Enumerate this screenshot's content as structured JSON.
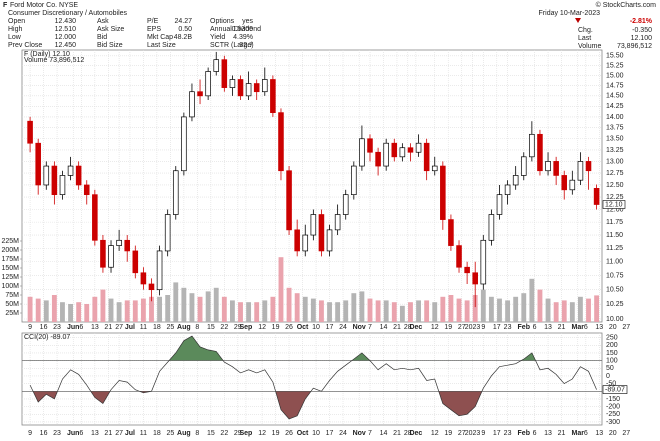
{
  "quote": {
    "symbol": "F",
    "name": "Ford Motor Co. NYSE",
    "credit": "© StockCharts.com",
    "sector": "Consumer Discretionary / Automobiles",
    "columns": [
      [
        {
          "label": "Open",
          "value": "12.430"
        },
        {
          "label": "High",
          "value": "12.510"
        },
        {
          "label": "Low",
          "value": "12.000"
        },
        {
          "label": "Prev Close",
          "value": "12.450"
        }
      ],
      [
        {
          "label": "Ask"
        },
        {
          "label": "Ask Size"
        },
        {
          "label": "Bid"
        },
        {
          "label": "Bid Size"
        }
      ],
      [
        {
          "label": "P/E",
          "value": "24.27"
        },
        {
          "label": "EPS",
          "value": "0.50"
        },
        {
          "label": "Mkt Cap",
          "value": "48.2B"
        },
        {
          "label": "Last Size"
        }
      ],
      [
        {
          "label": "Options",
          "value": "yes"
        },
        {
          "label": "Annual Dividend",
          "value": "0.5300"
        },
        {
          "label": "Yield",
          "value": "4.39%"
        },
        {
          "label": "SCTR (Large)",
          "value": "32.7"
        }
      ]
    ],
    "date": "Friday 10-Mar-2023",
    "change_pct": "-2.81%",
    "right": [
      {
        "label": "Chg.",
        "value": "-0.350"
      },
      {
        "label": "Last",
        "value": "12.100"
      },
      {
        "label": "Volume",
        "value": "73,896,512"
      }
    ]
  },
  "chart_data": {
    "type": "candlestick",
    "legend": "F (Daily) 12.10",
    "volume_legend": "Volume 73,896,512",
    "last_label": "12.10",
    "log": true,
    "grid": true,
    "up_color": "#000000",
    "down_color": "#cc0000",
    "xlim": [
      -3,
      212
    ],
    "xticks": [
      {
        "value": 0,
        "label": "9"
      },
      {
        "value": 5,
        "label": "16"
      },
      {
        "value": 10,
        "label": "23"
      },
      {
        "value": 16,
        "label": "Jun"
      },
      {
        "value": 19,
        "label": "6"
      },
      {
        "value": 24,
        "label": "13"
      },
      {
        "value": 29,
        "label": "21"
      },
      {
        "value": 33,
        "label": "27"
      },
      {
        "value": 37,
        "label": "Jul"
      },
      {
        "value": 42,
        "label": "11"
      },
      {
        "value": 47,
        "label": "18"
      },
      {
        "value": 52,
        "label": "25"
      },
      {
        "value": 57,
        "label": "Aug"
      },
      {
        "value": 62,
        "label": "8"
      },
      {
        "value": 67,
        "label": "15"
      },
      {
        "value": 72,
        "label": "22"
      },
      {
        "value": 77,
        "label": "29"
      },
      {
        "value": 80,
        "label": "Sep"
      },
      {
        "value": 86,
        "label": "12"
      },
      {
        "value": 91,
        "label": "19"
      },
      {
        "value": 96,
        "label": "26"
      },
      {
        "value": 101,
        "label": "Oct"
      },
      {
        "value": 106,
        "label": "10"
      },
      {
        "value": 111,
        "label": "17"
      },
      {
        "value": 116,
        "label": "24"
      },
      {
        "value": 122,
        "label": "Nov"
      },
      {
        "value": 126,
        "label": "7"
      },
      {
        "value": 131,
        "label": "14"
      },
      {
        "value": 136,
        "label": "21"
      },
      {
        "value": 140,
        "label": "28"
      },
      {
        "value": 143,
        "label": "Dec"
      },
      {
        "value": 150,
        "label": "12"
      },
      {
        "value": 155,
        "label": "19"
      },
      {
        "value": 160,
        "label": "27"
      },
      {
        "value": 164,
        "label": "2023"
      },
      {
        "value": 168,
        "label": "9"
      },
      {
        "value": 173,
        "label": "17"
      },
      {
        "value": 177,
        "label": "23"
      },
      {
        "value": 183,
        "label": "Feb"
      },
      {
        "value": 187,
        "label": "6"
      },
      {
        "value": 192,
        "label": "13"
      },
      {
        "value": 197,
        "label": "21"
      },
      {
        "value": 203,
        "label": "Mar"
      },
      {
        "value": 206,
        "label": "6"
      },
      {
        "value": 211,
        "label": "13"
      },
      {
        "value": 216,
        "label": "20"
      },
      {
        "value": 221,
        "label": "27"
      }
    ],
    "ylim": [
      9.95,
      15.65
    ],
    "yticks": [
      {
        "value": 10,
        "label": "10.00"
      },
      {
        "value": 10.25,
        "label": "10.25"
      },
      {
        "value": 10.5,
        "label": "10.50"
      },
      {
        "value": 10.75,
        "label": "10.75"
      },
      {
        "value": 11,
        "label": "11.00"
      },
      {
        "value": 11.25,
        "label": "11.25"
      },
      {
        "value": 11.5,
        "label": "11.50"
      },
      {
        "value": 11.75,
        "label": "11.75"
      },
      {
        "value": 12,
        "label": "12.00"
      },
      {
        "value": 12.25,
        "label": "12.25"
      },
      {
        "value": 12.5,
        "label": "12.50"
      },
      {
        "value": 12.75,
        "label": "12.75"
      },
      {
        "value": 13,
        "label": "13.00"
      },
      {
        "value": 13.25,
        "label": "13.25"
      },
      {
        "value": 13.5,
        "label": "13.50"
      },
      {
        "value": 13.75,
        "label": "13.75"
      },
      {
        "value": 14,
        "label": "14.00"
      },
      {
        "value": 14.25,
        "label": "14.25"
      },
      {
        "value": 14.5,
        "label": "14.50"
      },
      {
        "value": 14.75,
        "label": "14.75"
      },
      {
        "value": 15,
        "label": "15.00"
      },
      {
        "value": 15.25,
        "label": "15.25"
      },
      {
        "value": 15.5,
        "label": "15.50"
      }
    ],
    "x": [
      0,
      3,
      6,
      9,
      12,
      15,
      18,
      21,
      24,
      27,
      30,
      33,
      36,
      39,
      42,
      45,
      48,
      51,
      54,
      57,
      60,
      63,
      66,
      69,
      72,
      75,
      78,
      81,
      84,
      87,
      90,
      93,
      96,
      99,
      102,
      105,
      108,
      111,
      114,
      117,
      120,
      123,
      126,
      129,
      132,
      135,
      138,
      141,
      144,
      147,
      150,
      153,
      156,
      159,
      162,
      165,
      168,
      171,
      174,
      177,
      180,
      183,
      186,
      189,
      192,
      195,
      198,
      201,
      204,
      207,
      210
    ],
    "open": [
      13.9,
      13.4,
      12.5,
      12.9,
      12.3,
      12.7,
      12.9,
      12.5,
      12.3,
      11.4,
      10.9,
      11.3,
      11.4,
      11.2,
      10.8,
      10.6,
      10.5,
      11.2,
      11.9,
      12.8,
      14.0,
      14.6,
      14.5,
      15.1,
      15.4,
      14.7,
      14.9,
      14.5,
      14.8,
      14.6,
      14.9,
      14.1,
      12.8,
      11.6,
      11.2,
      11.5,
      11.9,
      11.2,
      11.6,
      11.9,
      12.3,
      12.9,
      13.5,
      13.2,
      12.9,
      13.4,
      13.1,
      13.3,
      13.2,
      13.4,
      12.8,
      12.9,
      11.8,
      11.3,
      10.9,
      10.8,
      10.6,
      11.4,
      11.9,
      12.3,
      12.5,
      12.7,
      13.1,
      13.6,
      12.8,
      13.0,
      12.7,
      12.4,
      12.6,
      13.0,
      12.43
    ],
    "high": [
      14.0,
      13.5,
      13.0,
      13.0,
      12.8,
      13.1,
      13.0,
      12.6,
      12.4,
      11.5,
      11.4,
      11.6,
      11.5,
      11.3,
      10.9,
      10.7,
      11.3,
      12.0,
      12.9,
      14.1,
      14.8,
      14.9,
      15.2,
      15.6,
      15.5,
      15.0,
      15.0,
      15.1,
      14.9,
      15.2,
      15.0,
      14.2,
      12.9,
      11.8,
      11.7,
      12.0,
      12.0,
      11.7,
      12.1,
      12.4,
      13.0,
      13.8,
      13.6,
      13.3,
      13.5,
      13.5,
      13.4,
      13.4,
      13.6,
      13.5,
      13.1,
      13.0,
      11.9,
      11.4,
      11.0,
      11.0,
      11.5,
      12.0,
      12.5,
      12.6,
      12.9,
      13.2,
      13.9,
      13.7,
      13.2,
      13.1,
      12.8,
      12.8,
      13.2,
      13.1,
      12.51
    ],
    "low": [
      13.2,
      12.3,
      12.4,
      12.1,
      12.2,
      12.6,
      12.4,
      12.1,
      11.3,
      10.8,
      10.8,
      11.2,
      11.0,
      10.7,
      10.5,
      10.3,
      10.4,
      11.1,
      11.8,
      12.7,
      13.9,
      14.3,
      14.4,
      15.0,
      14.6,
      14.5,
      14.4,
      14.4,
      14.4,
      14.5,
      14.0,
      12.6,
      11.5,
      11.1,
      11.1,
      11.4,
      11.1,
      11.1,
      11.5,
      11.8,
      12.2,
      12.8,
      13.0,
      12.7,
      12.8,
      13.0,
      13.0,
      13.0,
      13.1,
      12.6,
      12.7,
      11.6,
      11.2,
      10.8,
      10.6,
      10.2,
      10.5,
      11.3,
      11.8,
      12.1,
      12.4,
      12.6,
      13.0,
      12.7,
      12.7,
      12.5,
      12.2,
      12.3,
      12.5,
      12.4,
      12.0
    ],
    "close": [
      13.4,
      12.5,
      12.9,
      12.3,
      12.7,
      12.9,
      12.5,
      12.3,
      11.4,
      10.9,
      11.3,
      11.4,
      11.2,
      10.8,
      10.6,
      10.5,
      11.2,
      11.9,
      12.8,
      14.0,
      14.6,
      14.5,
      15.1,
      15.4,
      14.7,
      14.9,
      14.5,
      14.8,
      14.6,
      14.9,
      14.1,
      12.8,
      11.6,
      11.2,
      11.5,
      11.9,
      11.2,
      11.6,
      11.9,
      12.3,
      12.9,
      13.5,
      13.2,
      12.9,
      13.4,
      13.1,
      13.3,
      13.2,
      13.4,
      12.8,
      12.9,
      11.8,
      11.3,
      10.9,
      10.8,
      10.6,
      11.4,
      11.9,
      12.3,
      12.5,
      12.7,
      13.1,
      13.6,
      12.8,
      13.0,
      12.7,
      12.4,
      12.6,
      13.0,
      12.8,
      12.1
    ],
    "volume": {
      "up_color": "#b4b4b4",
      "down_color": "#eaa3ad",
      "ylim": [
        0,
        250000000
      ],
      "yticks": [
        {
          "value": 25000000,
          "label": "25M"
        },
        {
          "value": 50000000,
          "label": "50M"
        },
        {
          "value": 75000000,
          "label": "75M"
        },
        {
          "value": 100000000,
          "label": "100M"
        },
        {
          "value": 125000000,
          "label": "125M"
        },
        {
          "value": 150000000,
          "label": "150M"
        },
        {
          "value": 175000000,
          "label": "175M"
        },
        {
          "value": 200000000,
          "label": "200M"
        },
        {
          "value": 225000000,
          "label": "225M"
        }
      ],
      "values": [
        70000000,
        65000000,
        60000000,
        75000000,
        55000000,
        50000000,
        55000000,
        50000000,
        70000000,
        90000000,
        65000000,
        55000000,
        60000000,
        60000000,
        65000000,
        70000000,
        70000000,
        75000000,
        110000000,
        95000000,
        80000000,
        70000000,
        85000000,
        95000000,
        70000000,
        60000000,
        55000000,
        55000000,
        55000000,
        60000000,
        70000000,
        180000000,
        95000000,
        80000000,
        70000000,
        65000000,
        60000000,
        55000000,
        55000000,
        60000000,
        80000000,
        85000000,
        65000000,
        60000000,
        60000000,
        55000000,
        45000000,
        55000000,
        60000000,
        60000000,
        55000000,
        70000000,
        75000000,
        65000000,
        60000000,
        75000000,
        90000000,
        70000000,
        65000000,
        60000000,
        70000000,
        80000000,
        120000000,
        90000000,
        65000000,
        55000000,
        60000000,
        55000000,
        70000000,
        65000000,
        73896512
      ]
    },
    "cci": {
      "legend": "CCI(20) -89.07",
      "line_color": "#333333",
      "pos_fill": "#5b8a5b",
      "neg_fill": "#8e5050",
      "levels": [
        100,
        -100
      ],
      "ylim": [
        -320,
        280
      ],
      "yticks": [
        250,
        200,
        150,
        100,
        50,
        0,
        -50,
        -100,
        -150,
        -200,
        -250,
        -300
      ],
      "values": [
        -60,
        -170,
        -120,
        -150,
        -20,
        40,
        10,
        -60,
        -140,
        -180,
        -90,
        -30,
        -40,
        -90,
        -110,
        -100,
        30,
        90,
        150,
        230,
        260,
        190,
        170,
        160,
        90,
        60,
        20,
        40,
        20,
        40,
        -40,
        -220,
        -280,
        -260,
        -150,
        -80,
        -100,
        -30,
        30,
        70,
        110,
        150,
        100,
        40,
        80,
        40,
        50,
        40,
        50,
        -30,
        -20,
        -180,
        -220,
        -260,
        -250,
        -200,
        -80,
        0,
        60,
        70,
        80,
        110,
        150,
        40,
        50,
        10,
        -50,
        -20,
        60,
        30,
        -89.07
      ]
    }
  }
}
